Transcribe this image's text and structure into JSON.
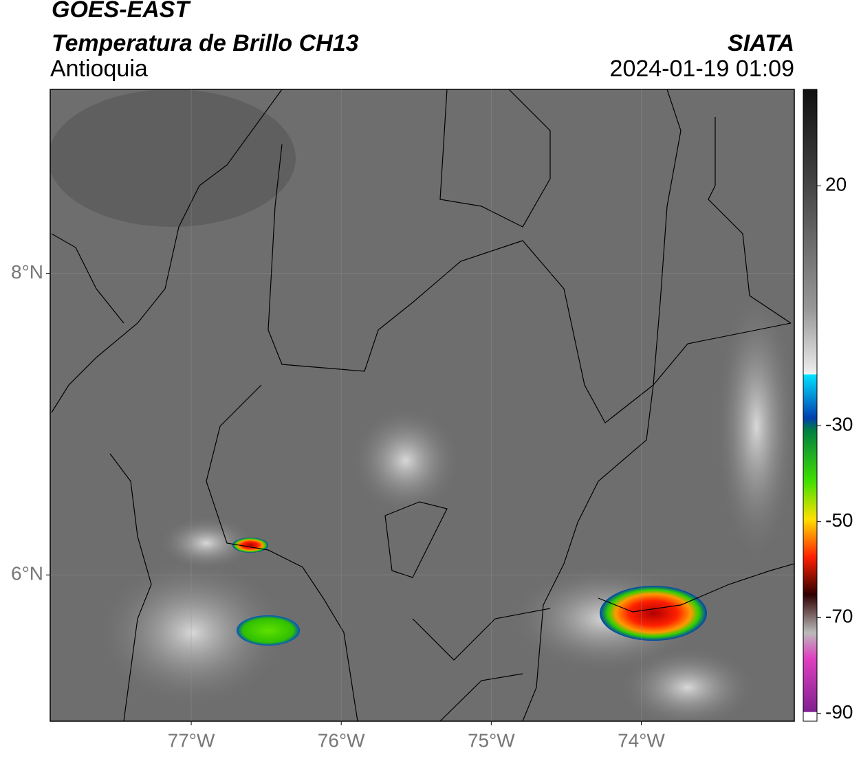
{
  "header": {
    "satellite": "GOES-EAST",
    "product": "Temperatura de Brillo CH13",
    "region": "Antioquia",
    "source": "SIATA",
    "datetime": "2024-01-19 01:09"
  },
  "map": {
    "xlim": [
      -77.94,
      -72.98
    ],
    "ylim": [
      5.03,
      9.22
    ],
    "xticks": [
      {
        "value": -77,
        "label": "77°W"
      },
      {
        "value": -76,
        "label": "76°W"
      },
      {
        "value": -75,
        "label": "75°W"
      },
      {
        "value": -74,
        "label": "74°W"
      }
    ],
    "yticks": [
      {
        "value": 8,
        "label": "8°N"
      },
      {
        "value": 6,
        "label": "6°N"
      }
    ]
  },
  "colorbar": {
    "lim": [
      -91.6,
      40.1
    ],
    "ticks": [
      20,
      -30,
      -50,
      -70,
      -90
    ]
  }
}
